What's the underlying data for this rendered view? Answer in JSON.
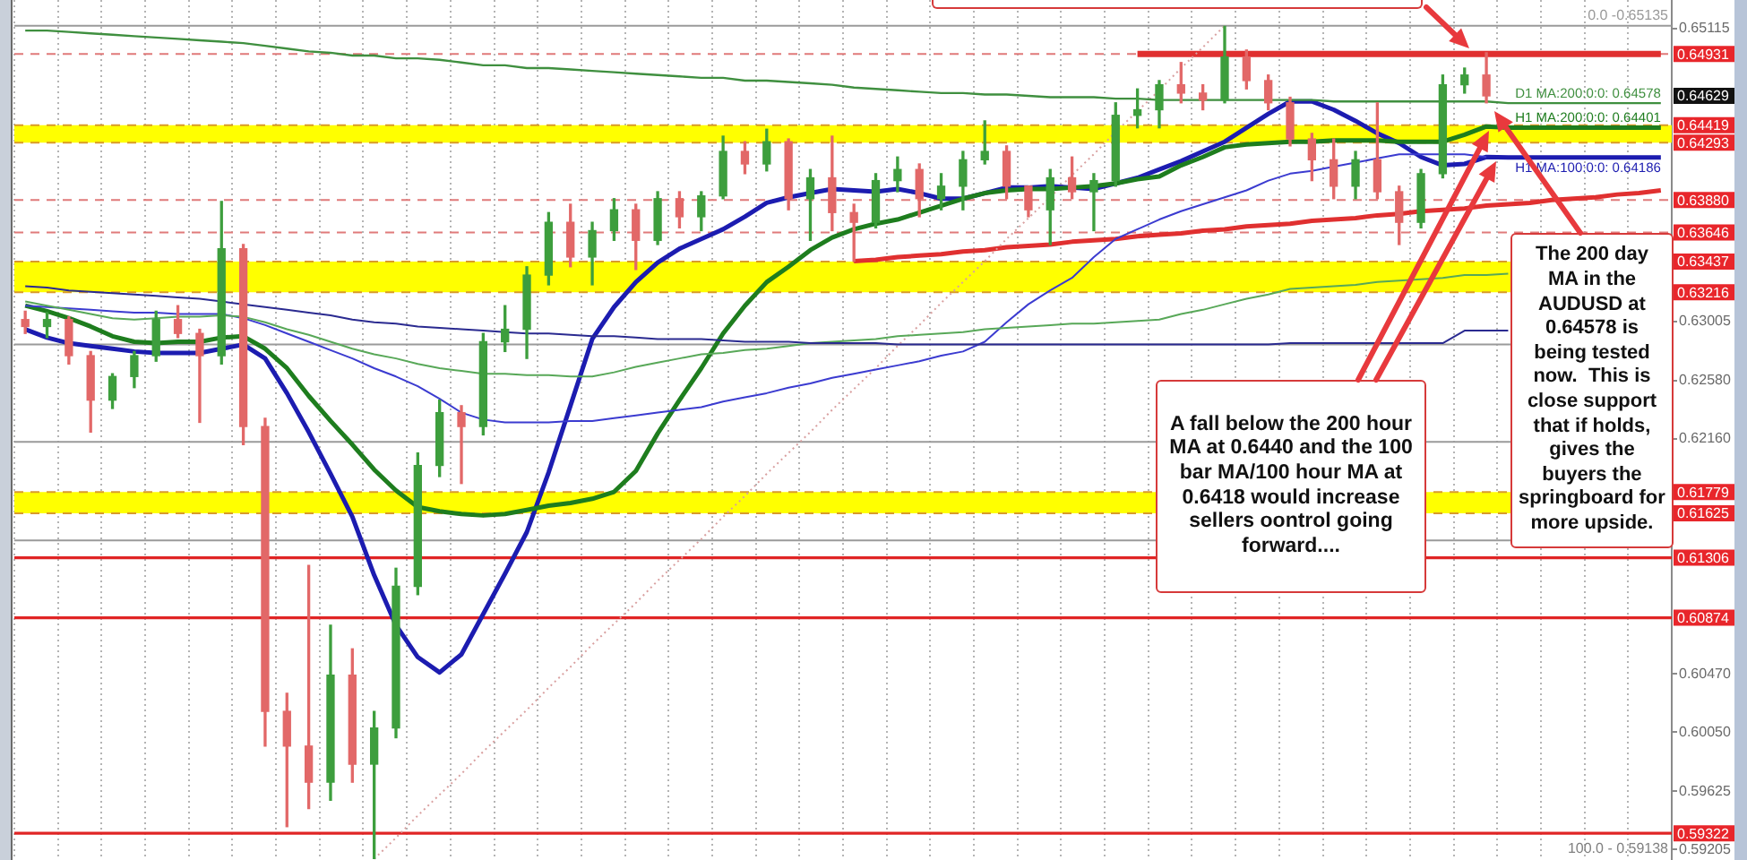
{
  "chart_data": {
    "type": "candlestick",
    "categories": [
      null,
      null,
      null,
      null,
      null,
      null,
      null,
      null,
      null,
      null,
      null,
      null,
      null,
      null,
      null,
      null,
      null,
      null,
      null,
      null,
      null,
      null,
      null,
      null,
      null,
      null,
      null,
      null,
      null,
      null,
      null,
      null,
      null,
      null,
      null,
      null,
      null,
      null,
      null,
      null,
      null,
      null,
      null,
      null,
      null,
      null,
      null,
      null,
      null,
      null,
      null,
      null,
      null,
      null,
      null,
      null,
      null,
      null,
      null,
      null,
      null,
      null,
      null,
      null,
      null,
      null,
      null,
      null,
      null,
      null,
      null,
      null,
      null,
      null,
      null,
      null
    ],
    "ohlc": [
      [
        0.6302,
        0.6308,
        0.6292,
        0.6297
      ],
      [
        0.6297,
        0.6307,
        0.6289,
        0.6302
      ],
      [
        0.6302,
        0.6304,
        0.627,
        0.6276
      ],
      [
        0.6276,
        0.6279,
        0.6221,
        0.6244
      ],
      [
        0.6244,
        0.6263,
        0.6238,
        0.6261
      ],
      [
        0.6261,
        0.6279,
        0.6253,
        0.6276
      ],
      [
        0.6276,
        0.6308,
        0.6272,
        0.6302
      ],
      [
        0.6302,
        0.6312,
        0.6289,
        0.6292
      ],
      [
        0.6292,
        0.6295,
        0.6228,
        0.6276
      ],
      [
        0.6276,
        0.6387,
        0.627,
        0.6353
      ],
      [
        0.6353,
        0.6356,
        0.6212,
        0.6225
      ],
      [
        0.6225,
        0.6231,
        0.5995,
        0.602
      ],
      [
        0.602,
        0.6033,
        0.5937,
        0.5995
      ],
      [
        0.5995,
        0.6125,
        0.595,
        0.5969
      ],
      [
        0.5969,
        0.6082,
        0.5956,
        0.6046
      ],
      [
        0.6046,
        0.6065,
        0.5969,
        0.5982
      ],
      [
        0.5982,
        0.602,
        0.5914,
        0.6008
      ],
      [
        0.6008,
        0.6123,
        0.6001,
        0.611
      ],
      [
        0.611,
        0.6206,
        0.6104,
        0.6197
      ],
      [
        0.6197,
        0.6244,
        0.6189,
        0.6235
      ],
      [
        0.6235,
        0.624,
        0.6184,
        0.6225
      ],
      [
        0.6225,
        0.6292,
        0.6219,
        0.6286
      ],
      [
        0.6286,
        0.6312,
        0.6279,
        0.6295
      ],
      [
        0.6295,
        0.634,
        0.6274,
        0.6334
      ],
      [
        0.6334,
        0.6379,
        0.6327,
        0.6372
      ],
      [
        0.6372,
        0.6385,
        0.634,
        0.6347
      ],
      [
        0.6347,
        0.6372,
        0.6327,
        0.6366
      ],
      [
        0.6366,
        0.6389,
        0.6359,
        0.6381
      ],
      [
        0.6381,
        0.6385,
        0.6338,
        0.6359
      ],
      [
        0.6359,
        0.6394,
        0.6356,
        0.6389
      ],
      [
        0.6389,
        0.6394,
        0.6368,
        0.6376
      ],
      [
        0.6376,
        0.6394,
        0.6366,
        0.6391
      ],
      [
        0.6391,
        0.6434,
        0.6389,
        0.6423
      ],
      [
        0.6423,
        0.643,
        0.6407,
        0.6414
      ],
      [
        0.6414,
        0.6439,
        0.6409,
        0.643
      ],
      [
        0.643,
        0.6432,
        0.6381,
        0.6389
      ],
      [
        0.6389,
        0.641,
        0.6359,
        0.6404
      ],
      [
        0.6404,
        0.6434,
        0.6366,
        0.6379
      ],
      [
        0.6379,
        0.6385,
        0.6344,
        0.6372
      ],
      [
        0.6372,
        0.6407,
        0.6368,
        0.6402
      ],
      [
        0.6402,
        0.6419,
        0.6394,
        0.641
      ],
      [
        0.641,
        0.6414,
        0.6376,
        0.6389
      ],
      [
        0.6389,
        0.6407,
        0.6381,
        0.6398
      ],
      [
        0.6398,
        0.6423,
        0.6381,
        0.6417
      ],
      [
        0.6417,
        0.6445,
        0.6414,
        0.6423
      ],
      [
        0.6423,
        0.6427,
        0.6389,
        0.6398
      ],
      [
        0.6398,
        0.6398,
        0.6376,
        0.6381
      ],
      [
        0.6381,
        0.641,
        0.6356,
        0.6404
      ],
      [
        0.6404,
        0.6419,
        0.6389,
        0.6394
      ],
      [
        0.6394,
        0.6407,
        0.6366,
        0.6402
      ],
      [
        0.6402,
        0.6458,
        0.6398,
        0.6449
      ],
      [
        0.6449,
        0.6468,
        0.644,
        0.6453
      ],
      [
        0.6453,
        0.6474,
        0.644,
        0.6471
      ],
      [
        0.6471,
        0.6487,
        0.6458,
        0.6465
      ],
      [
        0.6465,
        0.6471,
        0.6453,
        0.646
      ],
      [
        0.646,
        0.6513,
        0.6458,
        0.6491
      ],
      [
        0.6491,
        0.6496,
        0.6468,
        0.6474
      ],
      [
        0.6474,
        0.6478,
        0.6453,
        0.6458
      ],
      [
        0.6458,
        0.6462,
        0.6427,
        0.6432
      ],
      [
        0.6432,
        0.6436,
        0.6402,
        0.6417
      ],
      [
        0.6417,
        0.6432,
        0.6389,
        0.6398
      ],
      [
        0.6398,
        0.6423,
        0.6389,
        0.6417
      ],
      [
        0.6417,
        0.6458,
        0.6389,
        0.6394
      ],
      [
        0.6394,
        0.6398,
        0.6356,
        0.6372
      ],
      [
        0.6372,
        0.641,
        0.6368,
        0.6407
      ],
      [
        0.6407,
        0.6478,
        0.6404,
        0.6471
      ],
      [
        0.6471,
        0.6483,
        0.6465,
        0.6478
      ],
      [
        0.6478,
        0.6494,
        0.6458,
        0.6463
      ],
      null,
      null,
      null,
      null,
      null,
      null,
      null,
      null
    ],
    "ylim": [
      0.5913,
      0.6532
    ],
    "yticks": [
      0.65115,
      0.63005,
      {
        "value": 0.6258,
        "label": "0.62580"
      },
      {
        "value": 0.6216,
        "label": "0.62160"
      },
      {
        "value": 0.6047,
        "label": "0.60470"
      },
      {
        "value": 0.6005,
        "label": "0.60050"
      },
      0.59625,
      0.59205
    ],
    "tick_labels": "y",
    "grid": "x",
    "marker": "none",
    "series": [
      {
        "type": "line",
        "color": "#2a2a90",
        "values": [
          0.6326,
          0.6325,
          0.6323,
          0.6322,
          0.6321,
          0.632,
          0.6319,
          0.6318,
          0.6317,
          0.6315,
          0.6313,
          0.6311,
          0.6309,
          0.6307,
          0.6305,
          0.6302,
          0.63,
          0.6299,
          0.6297,
          0.6296,
          0.6295,
          0.6294,
          0.6293,
          0.6292,
          0.6292,
          0.6291,
          0.629,
          0.629,
          0.6289,
          0.6288,
          0.6288,
          0.6288,
          0.6287,
          0.6286,
          0.6286,
          0.6286,
          0.6285,
          0.6285,
          0.6285,
          0.6285,
          0.6284,
          0.6284,
          0.6284,
          0.6284,
          0.6284,
          0.6284,
          0.6284,
          0.6284,
          0.6284,
          0.6284,
          0.6284,
          0.6284,
          0.6284,
          0.6284,
          0.6284,
          0.6284,
          0.6284,
          0.6284,
          0.6285,
          0.6285,
          0.6285,
          0.6285,
          0.6285,
          0.6285,
          0.6285,
          0.6285,
          0.6294,
          0.6294,
          0.6294,
          null,
          null,
          null,
          null,
          null,
          null,
          null
        ]
      },
      {
        "type": "line",
        "color": "#58a858",
        "values": [
          0.6315,
          0.6312,
          0.6309,
          0.6306,
          0.6303,
          0.6302,
          0.6303,
          0.6304,
          0.6304,
          0.6305,
          0.6304,
          0.63,
          0.6295,
          0.6291,
          0.6286,
          0.6281,
          0.6277,
          0.6274,
          0.627,
          0.6267,
          0.6265,
          0.6263,
          0.6263,
          0.6262,
          0.6262,
          0.6261,
          0.6261,
          0.6264,
          0.6268,
          0.6271,
          0.6274,
          0.6277,
          0.6278,
          0.628,
          0.6281,
          0.6283,
          0.6285,
          0.6286,
          0.6287,
          0.6288,
          0.629,
          0.6291,
          0.6292,
          0.6293,
          0.6295,
          0.6296,
          0.6297,
          0.6298,
          0.6299,
          0.6299,
          0.63,
          0.6301,
          0.6302,
          0.6306,
          0.6309,
          0.6313,
          0.6317,
          0.632,
          0.6324,
          0.6325,
          0.6326,
          0.6327,
          0.6329,
          0.633,
          0.6331,
          0.6332,
          0.6334,
          0.6334,
          0.6335,
          null,
          null,
          null,
          null,
          null,
          null,
          null
        ]
      },
      {
        "type": "line",
        "color": "#3b3bd0",
        "values": [
          0.6312,
          0.6311,
          0.631,
          0.6309,
          0.6308,
          0.6307,
          0.6307,
          0.6306,
          0.6306,
          0.6306,
          0.6303,
          0.6298,
          0.6292,
          0.6286,
          0.628,
          0.6274,
          0.6267,
          0.6261,
          0.6254,
          0.6245,
          0.6235,
          0.623,
          0.6228,
          0.6228,
          0.6228,
          0.6229,
          0.6229,
          0.6231,
          0.6233,
          0.6235,
          0.6237,
          0.6239,
          0.6243,
          0.6246,
          0.6249,
          0.6253,
          0.6256,
          0.626,
          0.6263,
          0.6266,
          0.6269,
          0.6272,
          0.6276,
          0.6279,
          0.6286,
          0.63,
          0.6313,
          0.6323,
          0.6332,
          0.6347,
          0.636,
          0.6367,
          0.6374,
          0.638,
          0.6385,
          0.639,
          0.6395,
          0.6402,
          0.6407,
          0.6409,
          0.6412,
          0.6415,
          0.6418,
          0.6421,
          0.6421,
          0.6421,
          0.6421,
          0.6419,
          null,
          null,
          null,
          null,
          null,
          null,
          null,
          null
        ]
      },
      {
        "type": "line",
        "name": "D1 MA:200:0:0: 0.64578",
        "color": "#3f8f3f",
        "values": [
          0.651,
          0.651,
          0.6509,
          0.6508,
          0.6507,
          0.6506,
          0.6505,
          0.6504,
          0.6503,
          0.6502,
          0.6501,
          0.6499,
          0.6497,
          0.6495,
          0.6494,
          0.6492,
          0.6492,
          0.649,
          0.649,
          0.6489,
          0.6487,
          0.6485,
          0.6485,
          0.6483,
          0.6483,
          0.6482,
          0.6481,
          0.648,
          0.6479,
          0.6478,
          0.6477,
          0.6476,
          0.6476,
          0.6474,
          0.6474,
          0.6473,
          0.6472,
          0.6471,
          0.6469,
          0.6468,
          0.6467,
          0.6466,
          0.6465,
          0.6465,
          0.6464,
          0.6464,
          0.6463,
          0.6462,
          0.6462,
          0.6462,
          0.6461,
          0.6461,
          0.646,
          0.646,
          0.646,
          0.646,
          0.646,
          0.646,
          0.646,
          0.646,
          0.6459,
          0.6459,
          0.6459,
          0.6459,
          0.6459,
          0.6459,
          0.6459,
          0.6459,
          0.64578,
          0.64578,
          0.64578,
          0.64578,
          0.64578,
          0.64578,
          0.64578,
          0.64578
        ]
      },
      {
        "type": "line",
        "name": "H1 MA:200:0:0: 0.64401",
        "color": "#1e7d1e",
        "values": [
          0.6312,
          0.6308,
          0.6303,
          0.6297,
          0.629,
          0.6286,
          0.6285,
          0.6286,
          0.6286,
          0.6289,
          0.629,
          0.6281,
          0.6267,
          0.6247,
          0.6229,
          0.6212,
          0.6194,
          0.6179,
          0.6167,
          0.6164,
          0.6162,
          0.6161,
          0.6162,
          0.6165,
          0.6168,
          0.617,
          0.6173,
          0.6178,
          0.6193,
          0.622,
          0.6244,
          0.6267,
          0.6292,
          0.6312,
          0.6329,
          0.634,
          0.6352,
          0.6361,
          0.6367,
          0.6371,
          0.6374,
          0.6379,
          0.6384,
          0.6389,
          0.6393,
          0.6395,
          0.6396,
          0.6396,
          0.6397,
          0.6398,
          0.64,
          0.6403,
          0.6405,
          0.6413,
          0.6419,
          0.6426,
          0.6428,
          0.6429,
          0.643,
          0.643,
          0.6431,
          0.6431,
          0.6431,
          0.643,
          0.643,
          0.643,
          0.6435,
          0.6441,
          0.64401,
          0.64401,
          0.64401,
          0.64401,
          0.64401,
          0.64401,
          0.64401,
          0.64401
        ]
      },
      {
        "type": "line",
        "name": "H1 MA:100:0:0: 0.64186",
        "color": "#1c1cb0",
        "values": [
          0.6295,
          0.6289,
          0.6285,
          0.6283,
          0.6281,
          0.6279,
          0.6278,
          0.6278,
          0.6278,
          0.6281,
          0.6284,
          0.6274,
          0.6249,
          0.6221,
          0.6191,
          0.616,
          0.6118,
          0.6082,
          0.6059,
          0.6048,
          0.6061,
          0.609,
          0.6119,
          0.6149,
          0.6192,
          0.624,
          0.6288,
          0.6311,
          0.6329,
          0.6343,
          0.6353,
          0.636,
          0.6367,
          0.6376,
          0.6386,
          0.639,
          0.6393,
          0.6396,
          0.6395,
          0.6394,
          0.6396,
          0.6393,
          0.6389,
          0.6389,
          0.6393,
          0.6397,
          0.6397,
          0.6398,
          0.6397,
          0.6396,
          0.64,
          0.6404,
          0.641,
          0.6416,
          0.6423,
          0.643,
          0.644,
          0.645,
          0.6459,
          0.6459,
          0.6453,
          0.6445,
          0.6436,
          0.6429,
          0.6419,
          0.6413,
          0.6414,
          0.6419,
          0.64186,
          0.64186,
          0.64186,
          0.64186,
          0.64186,
          0.64186,
          0.64186,
          0.64186
        ]
      },
      {
        "type": "line",
        "color": "#d9a0a0",
        "line_style": "dotted",
        "values": [
          null,
          null,
          null,
          null,
          null,
          null,
          null,
          null,
          null,
          null,
          null,
          null,
          null,
          null,
          null,
          null,
          0.59138,
          0.5929,
          0.5945,
          0.596,
          0.5975,
          0.5991,
          0.6006,
          0.6021,
          0.6037,
          0.6052,
          0.6068,
          0.6083,
          0.6098,
          0.6114,
          0.6129,
          0.6144,
          0.616,
          0.6175,
          0.6191,
          0.6206,
          0.6221,
          0.6237,
          0.6252,
          0.6267,
          0.6283,
          0.6298,
          0.6314,
          0.6329,
          0.6344,
          0.636,
          0.6375,
          0.639,
          0.6406,
          0.6421,
          0.6437,
          0.6452,
          0.6467,
          0.6483,
          0.6498,
          0.65135,
          null,
          null,
          null,
          null,
          null,
          null,
          null,
          null,
          null,
          null,
          null,
          null,
          null,
          null,
          null,
          null,
          null,
          null,
          null,
          null
        ]
      },
      {
        "type": "line",
        "color": "#e03030",
        "values": [
          null,
          null,
          null,
          null,
          null,
          null,
          null,
          null,
          null,
          null,
          null,
          null,
          null,
          null,
          null,
          null,
          null,
          null,
          null,
          null,
          null,
          null,
          null,
          null,
          null,
          null,
          null,
          null,
          null,
          null,
          null,
          null,
          null,
          null,
          null,
          null,
          null,
          null,
          0.6344,
          0.6345,
          0.6347,
          0.6348,
          0.6349,
          0.6351,
          0.6352,
          0.6354,
          0.6355,
          0.6356,
          0.6358,
          0.6359,
          0.636,
          0.6362,
          0.6363,
          0.6364,
          0.6366,
          0.6367,
          0.6369,
          0.637,
          0.6371,
          0.6373,
          0.6374,
          0.6375,
          0.6377,
          0.6378,
          0.638,
          0.6381,
          0.6382,
          0.6384,
          0.6385,
          0.6386,
          0.6388,
          0.6389,
          0.639,
          0.6392,
          0.6393,
          0.6395
        ]
      },
      {
        "type": "line",
        "color": "#e03030",
        "values": [
          null,
          null,
          null,
          null,
          null,
          null,
          null,
          null,
          null,
          null,
          null,
          null,
          null,
          null,
          null,
          null,
          null,
          null,
          null,
          null,
          null,
          null,
          null,
          null,
          null,
          null,
          null,
          null,
          null,
          null,
          null,
          null,
          null,
          null,
          null,
          null,
          null,
          null,
          null,
          null,
          null,
          null,
          null,
          null,
          null,
          null,
          null,
          null,
          null,
          null,
          null,
          0.64931,
          0.64931,
          0.64931,
          0.64931,
          0.64931,
          0.64931,
          0.64931,
          0.64931,
          0.64931,
          0.64931,
          0.64931,
          0.64931,
          0.64931,
          0.64931,
          0.64931,
          0.64931,
          0.64931,
          0.64931,
          0.64931,
          0.64931,
          0.64931,
          0.64931,
          0.64931,
          0.64931,
          0.64931
        ]
      }
    ],
    "bands": [
      {
        "axis": "y",
        "from": 0.64293,
        "to": 0.64419,
        "color": "#ffff00"
      },
      {
        "axis": "y",
        "from": 0.63216,
        "to": 0.63437,
        "color": "#ffff00"
      },
      {
        "axis": "y",
        "from": 0.61625,
        "to": 0.61779,
        "color": "#ffff00"
      }
    ],
    "ref_lines": [
      {
        "axis": "y",
        "value": 0.65135,
        "color": "#9a9a9a",
        "line_style": "solid"
      },
      {
        "axis": "y",
        "value": 0.6284,
        "color": "#9a9a9a",
        "line_style": "solid"
      },
      {
        "axis": "y",
        "value": 0.6214,
        "color": "#9a9a9a",
        "line_style": "solid"
      },
      {
        "axis": "y",
        "value": 0.6143,
        "color": "#9a9a9a",
        "line_style": "solid"
      },
      {
        "axis": "y",
        "value": 0.64931,
        "label": "0.64931",
        "color": "#e07a7a",
        "line_style": "dashed"
      },
      {
        "axis": "y",
        "value": 0.64419,
        "label": "0.64419",
        "color": "#d99a2b",
        "line_style": "dashed"
      },
      {
        "axis": "y",
        "value": 0.64293,
        "label": "0.64293",
        "color": "#d99a2b",
        "line_style": "dashed"
      },
      {
        "axis": "y",
        "value": 0.6388,
        "label": "0.63880",
        "color": "#e07a7a",
        "line_style": "dashed"
      },
      {
        "axis": "y",
        "value": 0.63646,
        "label": "0.63646",
        "color": "#e07a7a",
        "line_style": "dashed"
      },
      {
        "axis": "y",
        "value": 0.63437,
        "label": "0.63437",
        "color": "#d99a2b",
        "line_style": "dashed"
      },
      {
        "axis": "y",
        "value": 0.63216,
        "label": "0.63216",
        "color": "#d99a2b",
        "line_style": "dashed"
      },
      {
        "axis": "y",
        "value": 0.61779,
        "label": "0.61779",
        "color": "#d99a2b",
        "line_style": "dashed"
      },
      {
        "axis": "y",
        "value": 0.61625,
        "label": "0.61625",
        "color": "#d99a2b",
        "line_style": "dashed"
      },
      {
        "axis": "y",
        "value": 0.61306,
        "label": "0.61306",
        "color": "#e02424",
        "line_style": "solid"
      },
      {
        "axis": "y",
        "value": 0.60874,
        "label": "0.60874",
        "color": "#e02424",
        "line_style": "solid"
      },
      {
        "axis": "y",
        "value": 0.59322,
        "label": "0.59322",
        "color": "#e02424",
        "line_style": "solid"
      }
    ],
    "annotations": [
      "A fall below the 200 hour MA at 0.6440 and the 100 bar MA/100 hour MA at 0.6418 would increase sellers oontrol going forward....",
      "The 200 day MA in the AUDUSD at 0.64578 is being tested now.  This is close support that if holds, gives the buyers the springboard for more upside.",
      {
        "text": "0.0 -0.65135",
        "y": 0.65135
      },
      "100.0 - 0.59138",
      "0.64629"
    ]
  }
}
